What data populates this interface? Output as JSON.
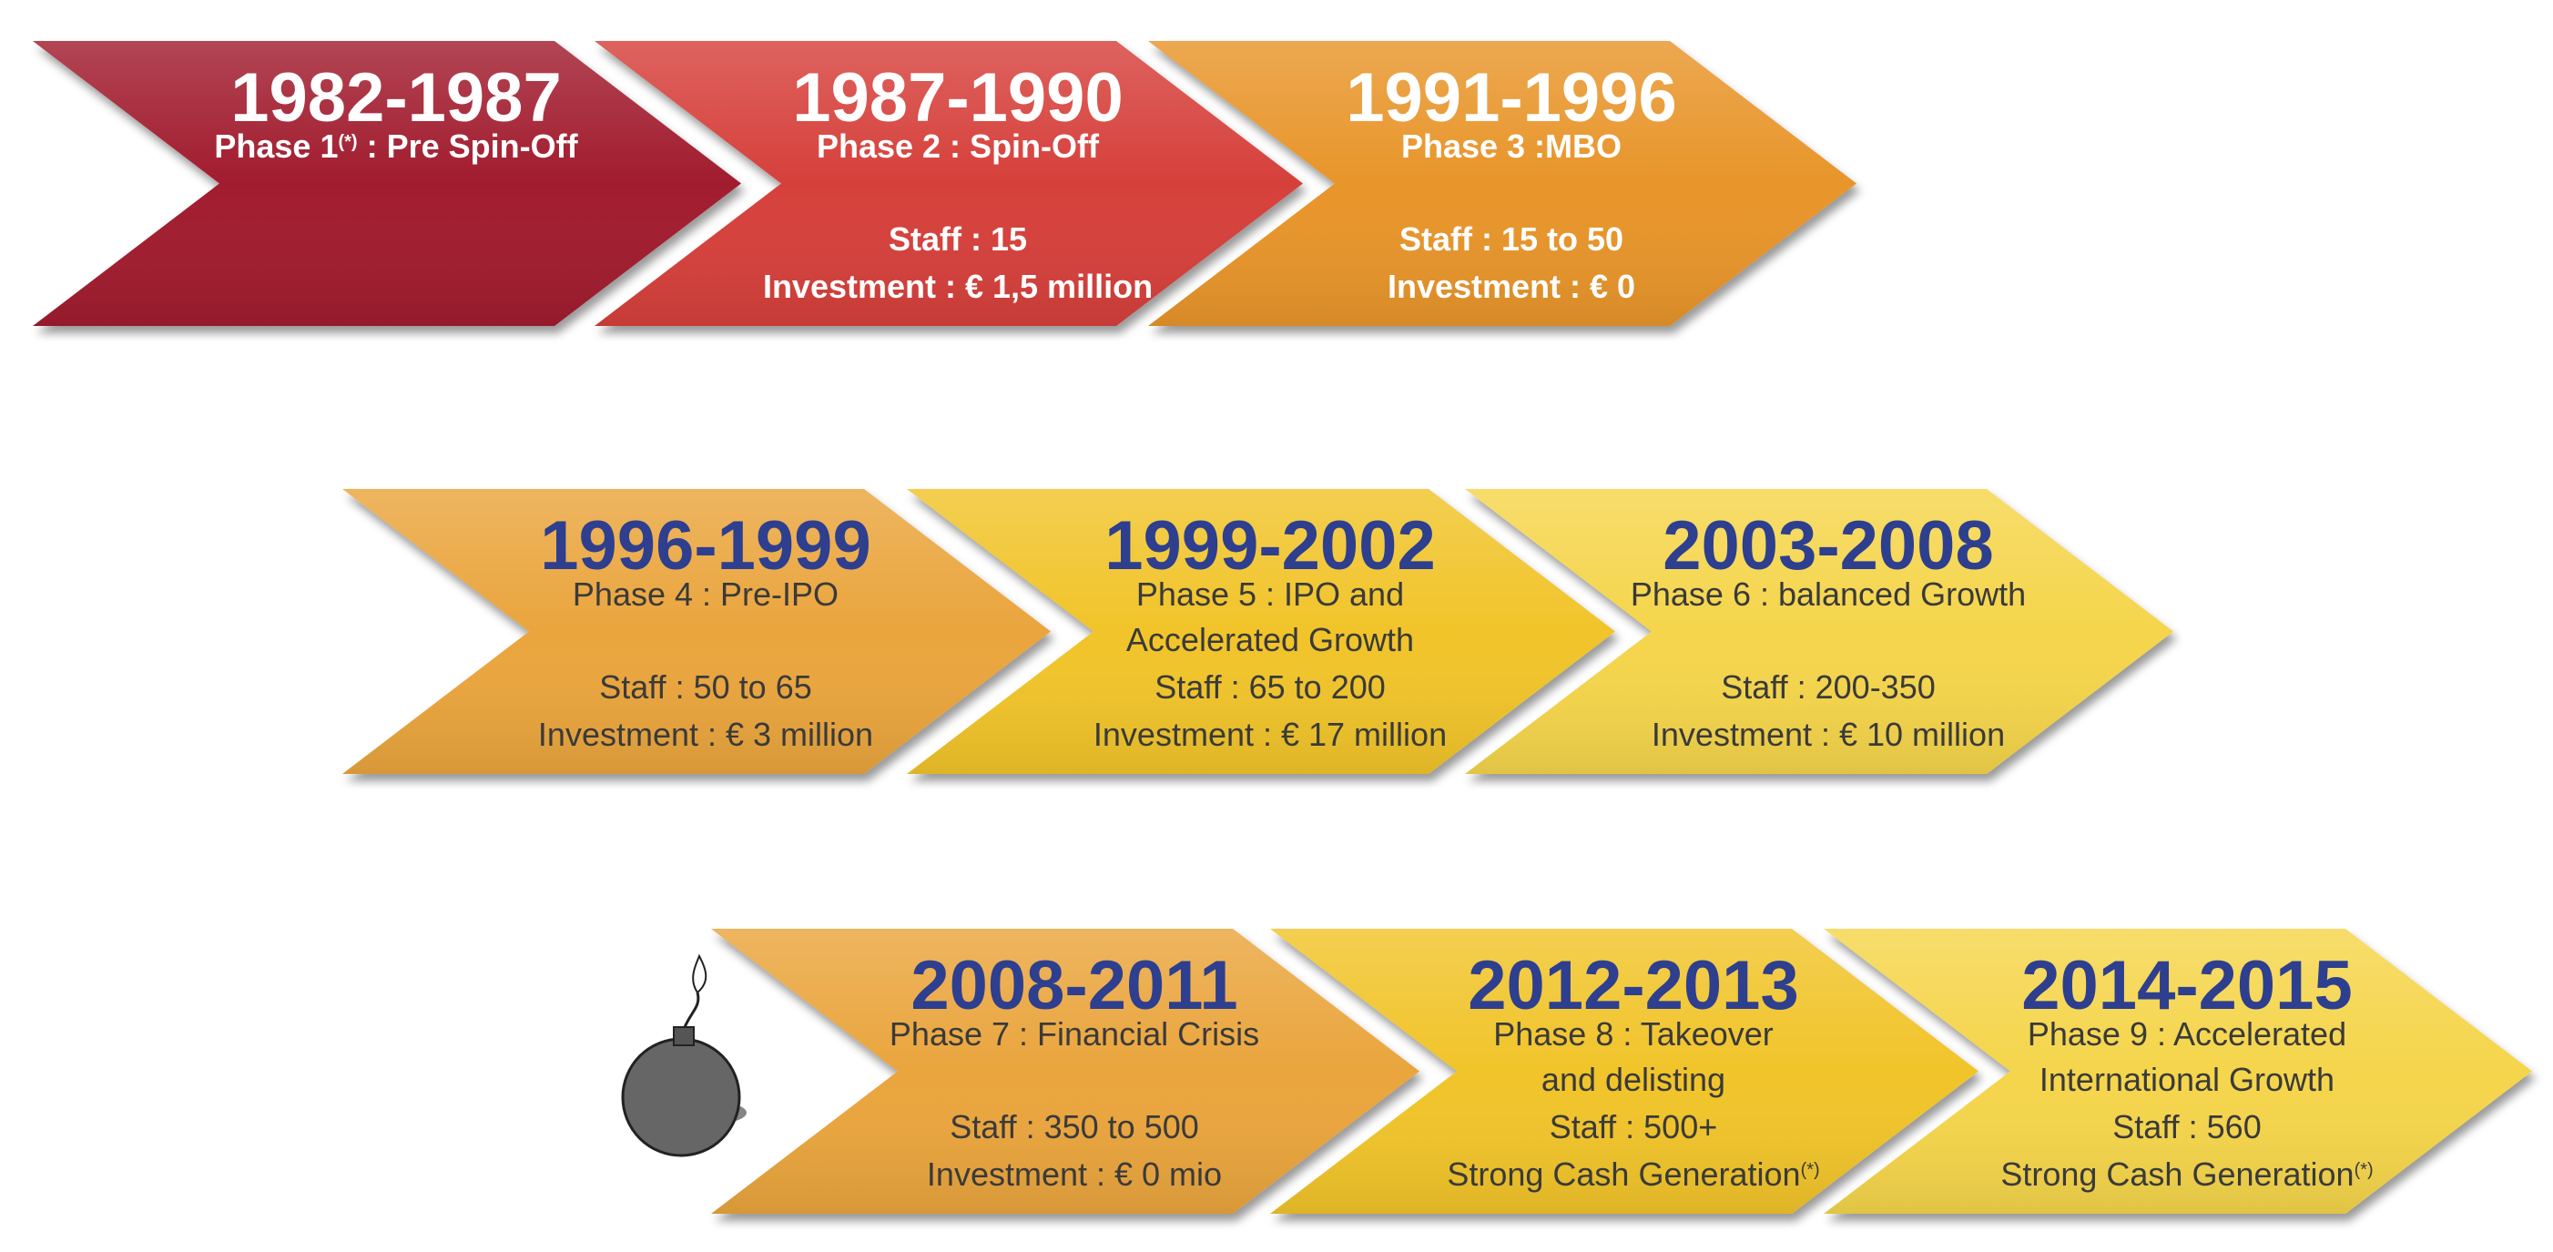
{
  "phases": [
    {
      "years": "1982-1987",
      "color": "#a11d2d",
      "text_color": "#ffffff",
      "year_color": "#ffffff",
      "lines": [
        [
          {
            "text": "Phase 1"
          },
          {
            "sup": "(*)"
          },
          {
            "text": " : Pre Spin-Off"
          }
        ]
      ]
    },
    {
      "years": "1987-1990",
      "color": "#d6403a",
      "text_color": "#ffffff",
      "year_color": "#ffffff",
      "lines": [
        [
          {
            "text": "Phase 2 : Spin-Off"
          }
        ],
        [
          {
            "text": "Staff : 15"
          }
        ],
        [
          {
            "text": "Investment : € 1,5 million"
          }
        ]
      ]
    },
    {
      "years": "1991-1996",
      "color": "#e8952c",
      "text_color": "#ffffff",
      "year_color": "#ffffff",
      "lines": [
        [
          {
            "text": "Phase 3 :MBO"
          }
        ],
        [
          {
            "text": "Staff : 15 to 50"
          }
        ],
        [
          {
            "text": "Investment : € 0"
          }
        ]
      ]
    },
    {
      "years": "1996-1999",
      "color": "#eaa53c",
      "text_color": "#3a3a3a",
      "year_color": "#2d3f8e",
      "lines": [
        [
          {
            "text": "Phase 4 : Pre-IPO"
          }
        ],
        [
          {
            "text": "Staff : 50 to 65"
          }
        ],
        [
          {
            "text": "Investment : € 3 million"
          }
        ]
      ]
    },
    {
      "years": "1999-2002",
      "color": "#f1c42c",
      "text_color": "#3a3a3a",
      "year_color": "#2d3f8e",
      "lines": [
        [
          {
            "text": "Phase 5 : IPO and"
          }
        ],
        [
          {
            "text": "Accelerated Growth"
          }
        ],
        [
          {
            "text": "Staff : 65 to 200"
          }
        ],
        [
          {
            "text": "Investment : € 17 million"
          }
        ]
      ]
    },
    {
      "years": "2003-2008",
      "color": "#f5d54c",
      "text_color": "#3a3a3a",
      "year_color": "#2d3f8e",
      "lines": [
        [
          {
            "text": "Phase 6 : balanced Growth"
          }
        ],
        [
          {
            "text": "Staff : 200-350"
          }
        ],
        [
          {
            "text": "Investment : € 10 million"
          }
        ]
      ]
    },
    {
      "years": "2008-2011",
      "color": "#eaa53c",
      "text_color": "#3a3a3a",
      "year_color": "#2d3f8e",
      "lines": [
        [
          {
            "text": "Phase 7 : Financial Crisis"
          }
        ],
        [
          {
            "text": "Staff : 350 to 500"
          }
        ],
        [
          {
            "text": "Investment : € 0 mio"
          }
        ]
      ]
    },
    {
      "years": "2012-2013",
      "color": "#f1c42c",
      "text_color": "#3a3a3a",
      "year_color": "#2d3f8e",
      "lines": [
        [
          {
            "text": "Phase 8 : Takeover"
          }
        ],
        [
          {
            "text": "and delisting"
          }
        ],
        [
          {
            "text": "Staff : 500+"
          }
        ],
        [
          {
            "text": "Strong Cash Generation"
          },
          {
            "sup": "(*)"
          }
        ]
      ]
    },
    {
      "years": "2014-2015",
      "color": "#f5d54c",
      "text_color": "#3a3a3a",
      "year_color": "#2d3f8e",
      "lines": [
        [
          {
            "text": "Phase 9 : Accelerated"
          }
        ],
        [
          {
            "text": "International Growth"
          }
        ],
        [
          {
            "text": "Staff : 560"
          }
        ],
        [
          {
            "text": "Strong Cash Generation"
          },
          {
            "sup": "(*)"
          }
        ]
      ]
    }
  ]
}
